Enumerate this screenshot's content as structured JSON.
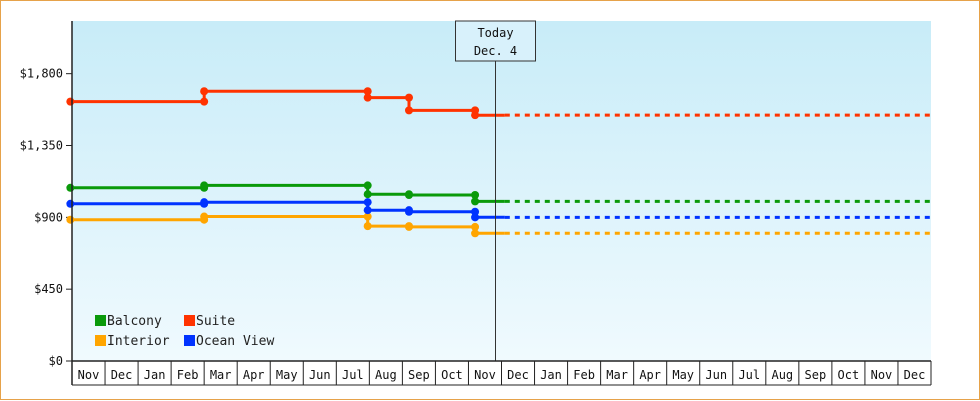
{
  "chart_data": {
    "type": "line",
    "step": true,
    "title": "",
    "xlabel": "",
    "ylabel": "",
    "ylim": [
      0,
      2130
    ],
    "y_ticks": [
      {
        "value": 0,
        "label": "$0"
      },
      {
        "value": 450,
        "label": "$450"
      },
      {
        "value": 900,
        "label": "$900"
      },
      {
        "value": 1350,
        "label": "$1,350"
      },
      {
        "value": 1800,
        "label": "$1,800"
      }
    ],
    "x_months": [
      "Nov",
      "Dec",
      "Jan",
      "Feb",
      "Mar",
      "Apr",
      "May",
      "Jun",
      "Jul",
      "Aug",
      "Sep",
      "Oct",
      "Nov",
      "Dec",
      "Jan",
      "Feb",
      "Mar",
      "Apr",
      "May",
      "Jun",
      "Jul",
      "Aug",
      "Sep",
      "Oct",
      "Nov",
      "Dec"
    ],
    "today_index": 13,
    "today_label_line1": "Today",
    "today_label_line2": "Dec. 4",
    "grid": false,
    "legend_position": "bottom-left",
    "series": [
      {
        "name": "Balcony",
        "color": "#0a9a0a",
        "points": [
          [
            -0.05,
            1085
          ],
          [
            4.0,
            1085
          ],
          [
            4.0,
            1100
          ],
          [
            8.95,
            1100
          ],
          [
            8.95,
            1045
          ],
          [
            10.2,
            1045
          ],
          [
            10.2,
            1040
          ],
          [
            12.2,
            1040
          ],
          [
            12.2,
            1000
          ],
          [
            13.1,
            1000
          ]
        ],
        "projection": 1000
      },
      {
        "name": "Suite",
        "color": "#ff3300",
        "points": [
          [
            -0.05,
            1625
          ],
          [
            4.0,
            1625
          ],
          [
            4.0,
            1690
          ],
          [
            8.95,
            1690
          ],
          [
            8.95,
            1650
          ],
          [
            10.2,
            1650
          ],
          [
            10.2,
            1570
          ],
          [
            12.2,
            1570
          ],
          [
            12.2,
            1540
          ],
          [
            13.1,
            1540
          ]
        ],
        "projection": 1540
      },
      {
        "name": "Interior",
        "color": "#ffa500",
        "points": [
          [
            -0.05,
            885
          ],
          [
            4.0,
            885
          ],
          [
            4.0,
            905
          ],
          [
            8.95,
            905
          ],
          [
            8.95,
            845
          ],
          [
            10.2,
            845
          ],
          [
            10.2,
            840
          ],
          [
            12.2,
            840
          ],
          [
            12.2,
            800
          ],
          [
            13.1,
            800
          ]
        ],
        "projection": 800
      },
      {
        "name": "Ocean View",
        "color": "#0033ff",
        "points": [
          [
            -0.05,
            985
          ],
          [
            4.0,
            985
          ],
          [
            4.0,
            995
          ],
          [
            8.95,
            995
          ],
          [
            8.95,
            945
          ],
          [
            10.2,
            945
          ],
          [
            10.2,
            935
          ],
          [
            12.2,
            935
          ],
          [
            12.2,
            900
          ],
          [
            13.1,
            900
          ]
        ],
        "projection": 900
      }
    ]
  }
}
